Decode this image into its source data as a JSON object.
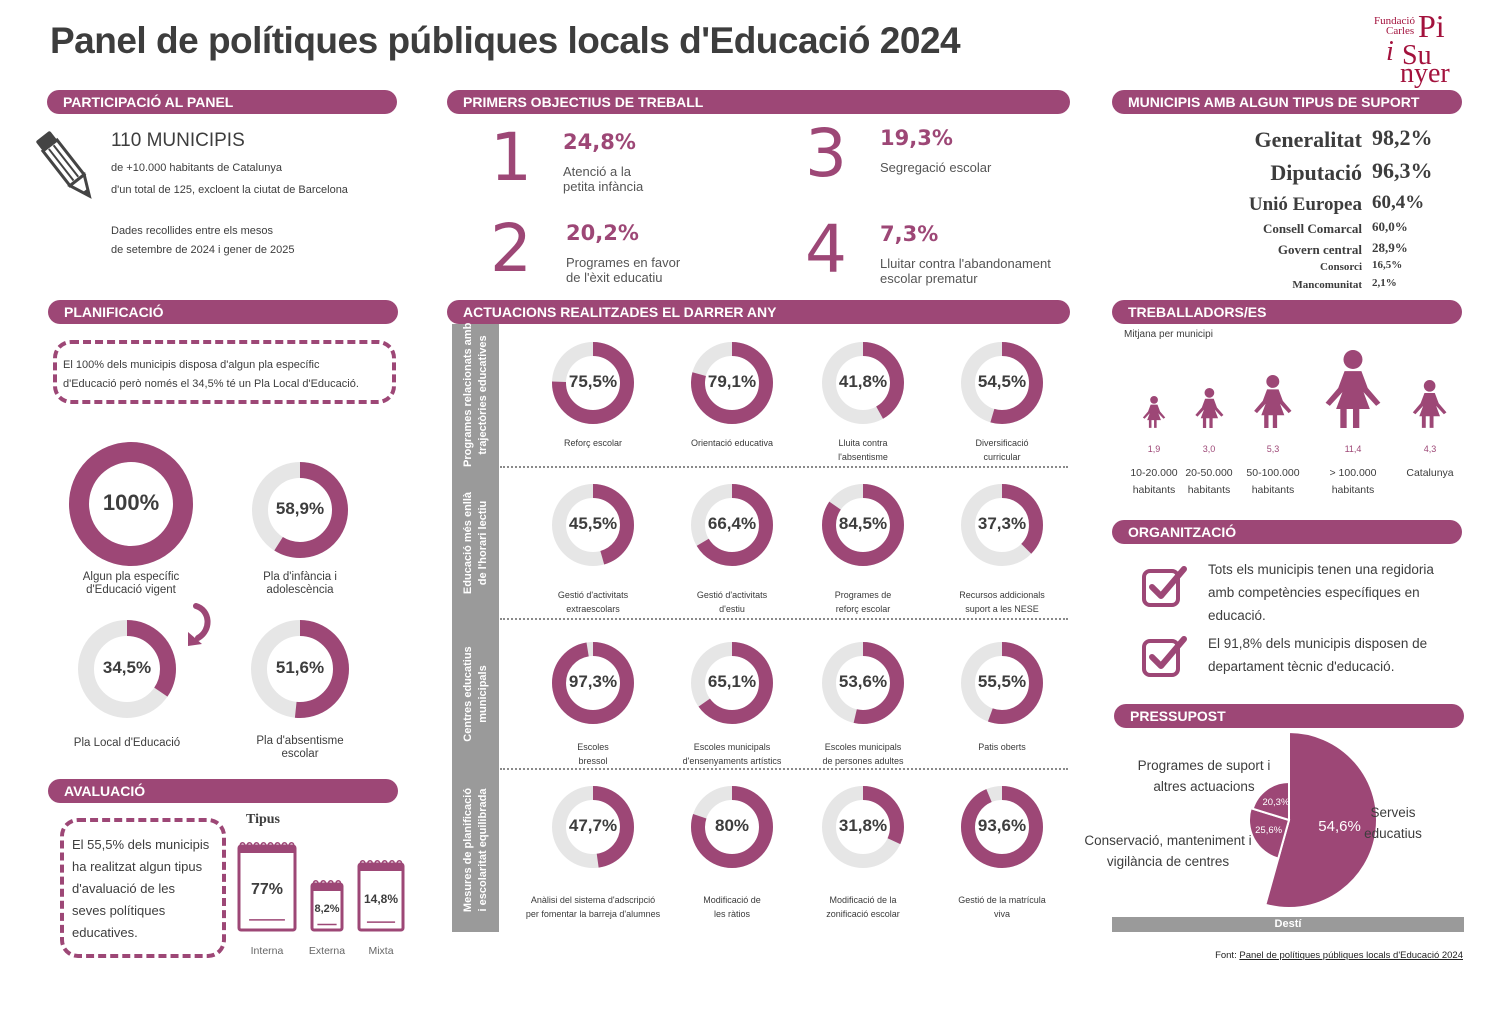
{
  "title": "Panel de polítiques públiques locals d'Educació 2024",
  "logo": {
    "line1": "Fundació",
    "line2": "Carles",
    "line3": "Pi",
    "line4": "i",
    "line5": "Sunyer",
    "line5a": "Su",
    "line5b": "nyer"
  },
  "participacio": {
    "header": "PARTICIPACIÓ AL PANEL",
    "count": "110 MUNICIPIS",
    "line1": "de +10.000 habitants de Catalunya",
    "line2": "d'un total de 125, excloent la ciutat de Barcelona",
    "line3": "Dades recollides entre els mesos",
    "line4": "de setembre de 2024 i gener de 2025"
  },
  "objectius": {
    "header": "PRIMERS OBJECTIUS DE TREBALL",
    "items": [
      {
        "rank": "1",
        "pct": "24,8%",
        "label1": "Atenció a la",
        "label2": "petita infància"
      },
      {
        "rank": "2",
        "pct": "20,2%",
        "label1": "Programes en favor",
        "label2": "de l'èxit educatiu"
      },
      {
        "rank": "3",
        "pct": "19,3%",
        "label1": "Segregació escolar",
        "label2": ""
      },
      {
        "rank": "4",
        "pct": "7,3%",
        "label1": "Lluitar contra l'abandonament",
        "label2": "escolar prematur"
      }
    ]
  },
  "suport": {
    "header": "MUNICIPIS AMB ALGUN TIPUS DE SUPORT",
    "items": [
      {
        "name": "Generalitat",
        "pct": "98,2%"
      },
      {
        "name": "Diputació",
        "pct": "96,3%"
      },
      {
        "name": "Unió Europea",
        "pct": "60,4%"
      },
      {
        "name": "Consell Comarcal",
        "pct": "60,0%"
      },
      {
        "name": "Govern central",
        "pct": "28,9%"
      },
      {
        "name": "Consorci",
        "pct": "16,5%"
      },
      {
        "name": "Mancomunitat",
        "pct": "2,1%"
      }
    ]
  },
  "planificacio": {
    "header": "PLANIFICACIÓ",
    "note1": "El 100% dels municipis disposa d'algun pla específic",
    "note2": "d'Educació però només el 34,5% té un Pla Local d'Educació.",
    "rings": [
      {
        "value": 100,
        "label": "100%",
        "cap1": "Algun pla específic",
        "cap2": "d'Educació vigent"
      },
      {
        "value": 58.9,
        "label": "58,9%",
        "cap1": "Pla d'infància i",
        "cap2": "adolescència"
      },
      {
        "value": 34.5,
        "label": "34,5%",
        "cap1": "Pla Local d'Educació",
        "cap2": ""
      },
      {
        "value": 51.6,
        "label": "51,6%",
        "cap1": "Pla d'absentisme",
        "cap2": "escolar"
      }
    ]
  },
  "avaluacio": {
    "header": "AVALUACIÓ",
    "note": [
      "El 55,5% dels municipis",
      "ha realitzat algun tipus",
      "d'avaluació de les",
      "seves polítiques",
      "educatives."
    ],
    "tipus_title": "Tipus",
    "items": [
      {
        "pct": "77%",
        "label": "Interna"
      },
      {
        "pct": "8,2%",
        "label": "Externa"
      },
      {
        "pct": "14,8%",
        "label": "Mixta"
      }
    ]
  },
  "actuacions": {
    "header": "ACTUACIONS REALITZADES EL DARRER ANY",
    "groups": [
      {
        "label1": "Programes relacionats amb",
        "label2": "trajectòries educatives",
        "rings": [
          {
            "value": 75.5,
            "label": "75,5%",
            "cap1": "Reforç escolar",
            "cap2": ""
          },
          {
            "value": 79.1,
            "label": "79,1%",
            "cap1": "Orientació educativa",
            "cap2": ""
          },
          {
            "value": 41.8,
            "label": "41,8%",
            "cap1": "Lluita contra",
            "cap2": "l'absentisme"
          },
          {
            "value": 54.5,
            "label": "54,5%",
            "cap1": "Diversificació",
            "cap2": "curricular"
          }
        ]
      },
      {
        "label1": "Educació més enllà",
        "label2": "de l'horari lectiu",
        "rings": [
          {
            "value": 45.5,
            "label": "45,5%",
            "cap1": "Gestió d'activitats",
            "cap2": "extraescolars"
          },
          {
            "value": 66.4,
            "label": "66,4%",
            "cap1": "Gestió d'activitats",
            "cap2": "d'estiu"
          },
          {
            "value": 84.5,
            "label": "84,5%",
            "cap1": "Programes de",
            "cap2": "reforç escolar"
          },
          {
            "value": 37.3,
            "label": "37,3%",
            "cap1": "Recursos addicionals",
            "cap2": "suport a les NESE"
          }
        ]
      },
      {
        "label1": "Centres educatius",
        "label2": "municipals",
        "rings": [
          {
            "value": 97.3,
            "label": "97,3%",
            "cap1": "Escoles",
            "cap2": "bressol"
          },
          {
            "value": 65.1,
            "label": "65,1%",
            "cap1": "Escoles municipals",
            "cap2": "d'ensenyaments artístics"
          },
          {
            "value": 53.6,
            "label": "53,6%",
            "cap1": "Escoles municipals",
            "cap2": "de persones adultes"
          },
          {
            "value": 55.5,
            "label": "55,5%",
            "cap1": "Patis oberts",
            "cap2": ""
          }
        ]
      },
      {
        "label1": "Mesures de planificació",
        "label2": "i escolaritat equilibrada",
        "rings": [
          {
            "value": 47.7,
            "label": "47,7%",
            "cap1": "Anàlisi del sistema d'adscripció",
            "cap2": "per fomentar la barreja d'alumnes"
          },
          {
            "value": 80,
            "label": "80%",
            "cap1": "Modificació de",
            "cap2": "les ràtios"
          },
          {
            "value": 31.8,
            "label": "31,8%",
            "cap1": "Modificació de la",
            "cap2": "zonificació escolar"
          },
          {
            "value": 93.6,
            "label": "93,6%",
            "cap1": "Gestió de la matrícula",
            "cap2": "viva"
          }
        ]
      }
    ]
  },
  "treballadors": {
    "header": "TREBALLADORS/ES",
    "subtitle": "Mitjana per municipi",
    "items": [
      {
        "value": 1.9,
        "label": "1,9",
        "cat1": "10-20.000",
        "cat2": "habitants"
      },
      {
        "value": 3.0,
        "label": "3,0",
        "cat1": "20-50.000",
        "cat2": "habitants"
      },
      {
        "value": 5.3,
        "label": "5,3",
        "cat1": "50-100.000",
        "cat2": "habitants"
      },
      {
        "value": 11.4,
        "label": "11,4",
        "cat1": "> 100.000",
        "cat2": "habitants"
      },
      {
        "value": 4.3,
        "label": "4,3",
        "cat1": "Catalunya",
        "cat2": ""
      }
    ]
  },
  "organitzacio": {
    "header": "ORGANITZACIÓ",
    "item1": [
      "Tots els municipis tenen una regidoria",
      "amb competències específiques en",
      "educació."
    ],
    "item2": [
      "El 91,8% dels municipis disposen de",
      "departament tècnic d'educació."
    ]
  },
  "pressupost": {
    "header": "PRESSUPOST",
    "footer_label": "Destí",
    "slices": [
      {
        "value": 54.6,
        "label": "54,6%",
        "name1": "Serveis",
        "name2": "educatius"
      },
      {
        "value": 25.6,
        "label": "25,6%",
        "name1": "Conservació, manteniment i",
        "name2": "vigilància de centres"
      },
      {
        "value": 20.3,
        "label": "20,3%",
        "name1": "Programes de suport i",
        "name2": "altres actuacions"
      }
    ]
  },
  "font": {
    "prefix": "Font: ",
    "link": "Panel de polítiques públiques locals d'Educació 2024"
  },
  "chart_data": [
    {
      "type": "pie",
      "title": "PLANIFICACIÓ",
      "categories": [
        "Algun pla específic d'Educació vigent",
        "Pla d'infància i adolescència",
        "Pla Local d'Educació",
        "Pla d'absentisme escolar"
      ],
      "values": [
        100,
        58.9,
        34.5,
        51.6
      ]
    },
    {
      "type": "bar",
      "title": "ACTUACIONS REALITZADES EL DARRER ANY",
      "categories": [
        "Reforç escolar",
        "Orientació educativa",
        "Lluita contra l'absentisme",
        "Diversificació curricular",
        "Gestió d'activitats extraescolars",
        "Gestió d'activitats d'estiu",
        "Programes de reforç escolar",
        "Recursos addicionals suport a les NESE",
        "Escoles bressol",
        "Escoles municipals d'ensenyaments artístics",
        "Escoles municipals de persones adultes",
        "Patis oberts",
        "Anàlisi del sistema d'adscripció per fomentar la barreja d'alumnes",
        "Modificació de les ràtios",
        "Modificació de la zonificació escolar",
        "Gestió de la matrícula viva"
      ],
      "values": [
        75.5,
        79.1,
        41.8,
        54.5,
        45.5,
        66.4,
        84.5,
        37.3,
        97.3,
        65.1,
        53.6,
        55.5,
        47.7,
        80,
        31.8,
        93.6
      ]
    },
    {
      "type": "bar",
      "title": "TREBALLADORS/ES",
      "categories": [
        "10-20.000 habitants",
        "20-50.000 habitants",
        "50-100.000 habitants",
        "> 100.000 habitants",
        "Catalunya"
      ],
      "values": [
        1.9,
        3.0,
        5.3,
        11.4,
        4.3
      ]
    },
    {
      "type": "pie",
      "title": "PRESSUPOST",
      "categories": [
        "Serveis educatius",
        "Conservació, manteniment i vigilància de centres",
        "Programes de suport i altres actuacions"
      ],
      "values": [
        54.6,
        25.6,
        20.3
      ]
    }
  ],
  "colors": {
    "accent": "#9d4776",
    "ring_bg": "#e6e6e6",
    "sidebar": "#9a9a9a",
    "logo": "#a3123d"
  },
  "icons": {
    "pencil": "pencil-icon",
    "arrow": "curved-arrow-icon",
    "check": "checkbox-check-icon",
    "notebook": "notebook-icon",
    "person": "person-icon"
  }
}
